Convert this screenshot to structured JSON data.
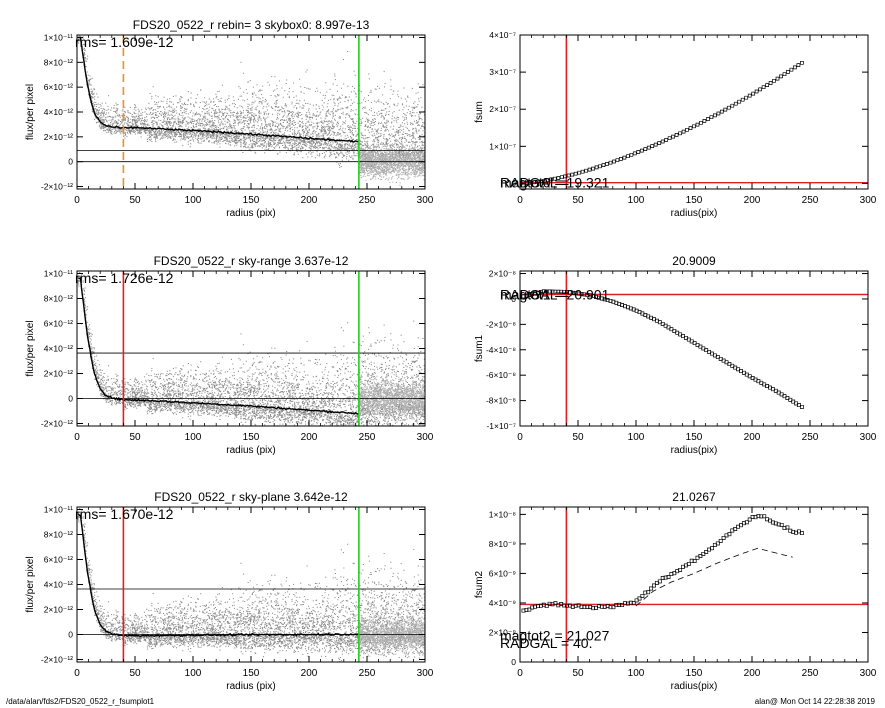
{
  "footer": {
    "path": "/data/alan/fds2/FDS20_0522_r_fsumplot1",
    "stamp": "alan@  Mon Oct 14 22:28:38 2019"
  },
  "colors": {
    "dots": "#8a8a8a",
    "profile": "#000000",
    "red": "#e02020",
    "green": "#22cc22",
    "orange": "#f0901e"
  },
  "chart_data": [
    {
      "id": "p1",
      "type": "scatter",
      "title": "FDS20_0522_r rebin= 3    skybox0:  8.997e-13",
      "xlabel": "radius (pix)",
      "ylabel": "flux/per pixel",
      "xlim": [
        0,
        300
      ],
      "ylim": [
        -2.2e-12,
        1.02e-11
      ],
      "xticks": [
        "0",
        "50",
        "100",
        "150",
        "200",
        "250",
        "300"
      ],
      "yticks": [
        {
          "v": 1e-11,
          "label": "1×10⁻¹¹"
        },
        {
          "v": 8e-12,
          "label": "8×10⁻¹²"
        },
        {
          "v": 6e-12,
          "label": "6×10⁻¹²"
        },
        {
          "v": 4e-12,
          "label": "4×10⁻¹²"
        },
        {
          "v": 2e-12,
          "label": "2×10⁻¹²"
        },
        {
          "v": 0,
          "label": "0"
        },
        {
          "v": -2e-12,
          "label": "-2×10⁻¹²"
        }
      ],
      "annotation": "rms= 1.609e-12",
      "hlines": [
        9e-13,
        0
      ],
      "vline_radgal": 40,
      "vline_radgal_style": "orange-dashed",
      "vline_edge": 243,
      "profile": [
        [
          3,
          1e-11
        ],
        [
          6,
          8e-12
        ],
        [
          9,
          6.2e-12
        ],
        [
          12,
          4.9e-12
        ],
        [
          15,
          3.9e-12
        ],
        [
          20,
          3.2e-12
        ],
        [
          25,
          2.9e-12
        ],
        [
          30,
          2.8e-12
        ],
        [
          40,
          2.7e-12
        ],
        [
          50,
          2.75e-12
        ],
        [
          70,
          2.65e-12
        ],
        [
          100,
          2.5e-12
        ],
        [
          130,
          2.35e-12
        ],
        [
          160,
          2.15e-12
        ],
        [
          190,
          1.95e-12
        ],
        [
          220,
          1.75e-12
        ],
        [
          242,
          1.6e-12
        ]
      ],
      "scatter_spread": [
        1.2e-12,
        1.9e-12,
        2.6e-12,
        3.4e-12
      ]
    },
    {
      "id": "p2",
      "type": "scatter",
      "title": "FDS20_0522_r sky-range  3.637e-12",
      "xlabel": "radius (pix)",
      "ylabel": "flux/per pixel",
      "xlim": [
        0,
        300
      ],
      "ylim": [
        -2.2e-12,
        1.02e-11
      ],
      "xticks": [
        "0",
        "50",
        "100",
        "150",
        "200",
        "250",
        "300"
      ],
      "yticks": [
        {
          "v": 1e-11,
          "label": "1×10⁻¹¹"
        },
        {
          "v": 8e-12,
          "label": "8×10⁻¹²"
        },
        {
          "v": 6e-12,
          "label": "6×10⁻¹²"
        },
        {
          "v": 4e-12,
          "label": "4×10⁻¹²"
        },
        {
          "v": 2e-12,
          "label": "2×10⁻¹²"
        },
        {
          "v": 0,
          "label": "0"
        },
        {
          "v": -2e-12,
          "label": "-2×10⁻¹²"
        }
      ],
      "annotation": "rms= 1.726e-12",
      "hlines": [
        3.637e-12,
        0
      ],
      "vline_radgal": 40,
      "vline_radgal_style": "red",
      "vline_edge": 243,
      "profile": [
        [
          3,
          9.6e-12
        ],
        [
          6,
          7.2e-12
        ],
        [
          9,
          5e-12
        ],
        [
          12,
          3.4e-12
        ],
        [
          15,
          2e-12
        ],
        [
          20,
          8e-13
        ],
        [
          25,
          2.5e-13
        ],
        [
          30,
          5e-14
        ],
        [
          40,
          -1e-13
        ],
        [
          60,
          -1.5e-13
        ],
        [
          90,
          -3e-13
        ],
        [
          120,
          -4.5e-13
        ],
        [
          150,
          -6e-13
        ],
        [
          180,
          -8e-13
        ],
        [
          210,
          -1e-12
        ],
        [
          242,
          -1.2e-12
        ]
      ],
      "scatter_spread": [
        1.2e-12,
        1.9e-12,
        2.6e-12,
        3.4e-12
      ]
    },
    {
      "id": "p3",
      "type": "scatter",
      "title": "FDS20_0522_r sky-plane  3.642e-12",
      "xlabel": "radius (pix)",
      "ylabel": "flux/per pixel",
      "xlim": [
        0,
        300
      ],
      "ylim": [
        -2.2e-12,
        1.02e-11
      ],
      "xticks": [
        "0",
        "50",
        "100",
        "150",
        "200",
        "250",
        "300"
      ],
      "yticks": [
        {
          "v": 1e-11,
          "label": "1×10⁻¹¹"
        },
        {
          "v": 8e-12,
          "label": "8×10⁻¹²"
        },
        {
          "v": 6e-12,
          "label": "6×10⁻¹²"
        },
        {
          "v": 4e-12,
          "label": "4×10⁻¹²"
        },
        {
          "v": 2e-12,
          "label": "2×10⁻¹²"
        },
        {
          "v": 0,
          "label": "0"
        },
        {
          "v": -2e-12,
          "label": "-2×10⁻¹²"
        }
      ],
      "annotation": "rms= 1.670e-12",
      "hlines": [
        3.642e-12,
        0
      ],
      "vline_radgal": 40,
      "vline_radgal_style": "red",
      "vline_edge": 243,
      "profile": [
        [
          3,
          9.6e-12
        ],
        [
          6,
          7.2e-12
        ],
        [
          9,
          5e-12
        ],
        [
          12,
          3.4e-12
        ],
        [
          15,
          2e-12
        ],
        [
          20,
          8e-13
        ],
        [
          25,
          2.5e-13
        ],
        [
          30,
          5e-14
        ],
        [
          40,
          -1e-13
        ],
        [
          70,
          -8e-14
        ],
        [
          100,
          -5e-14
        ],
        [
          150,
          -2e-14
        ],
        [
          200,
          0.0
        ],
        [
          242,
          2e-14
        ]
      ],
      "scatter_spread": [
        1.2e-12,
        1.9e-12,
        2.6e-12,
        3.4e-12
      ]
    },
    {
      "id": "p4",
      "type": "scatter",
      "title": "",
      "xlabel": "radius(pix)",
      "ylabel": "fsum",
      "xlim": [
        0,
        300
      ],
      "ylim": [
        -1.5e-08,
        4e-07
      ],
      "xticks": [
        "0",
        "50",
        "100",
        "150",
        "200",
        "250",
        "300"
      ],
      "yticks": [
        {
          "v": 4e-07,
          "label": "4×10⁻⁷"
        },
        {
          "v": 3e-07,
          "label": "3×10⁻⁷"
        },
        {
          "v": 2e-07,
          "label": "2×10⁻⁷"
        },
        {
          "v": 1e-07,
          "label": "1×10⁻⁷"
        },
        {
          "v": 0,
          "label": "0"
        }
      ],
      "overprint": [
        "RADGAL =",
        "magtot0 =  19.321"
      ],
      "hline_red": 2e-09,
      "vline_red": 40,
      "curve": {
        "kind": "power",
        "x0": 3,
        "x1": 243,
        "a": 3.25e-07,
        "p": 1.55,
        "step": 3
      },
      "dashed": null
    },
    {
      "id": "p5",
      "type": "scatter",
      "title": "20.9009",
      "xlabel": "radius(pix)",
      "ylabel": "fsum1",
      "xlim": [
        0,
        300
      ],
      "ylim": [
        -1e-07,
        2.2e-08
      ],
      "xticks": [
        "0",
        "50",
        "100",
        "150",
        "200",
        "250",
        "300"
      ],
      "yticks": [
        {
          "v": 2e-08,
          "label": "2×10⁻⁸"
        },
        {
          "v": 0,
          "label": "0"
        },
        {
          "v": -2e-08,
          "label": "-2×10⁻⁸"
        },
        {
          "v": -4e-08,
          "label": "-4×10⁻⁸"
        },
        {
          "v": -6e-08,
          "label": "-6×10⁻⁸"
        },
        {
          "v": -8e-08,
          "label": "-8×10⁻⁸"
        },
        {
          "v": -1e-07,
          "label": "-1×10⁻⁷"
        }
      ],
      "overprint": [
        "RADGAL =",
        "magtot1 =  20.901"
      ],
      "hline_red": 3.5e-09,
      "vline_red": 40,
      "curve": {
        "kind": "points",
        "step": 2.5,
        "points": [
          [
            3,
            2e-09
          ],
          [
            20,
            6e-09
          ],
          [
            40,
            5.5e-09
          ],
          [
            60,
            3e-09
          ],
          [
            80,
            -2e-09
          ],
          [
            100,
            -9e-09
          ],
          [
            120,
            -1.8e-08
          ],
          [
            140,
            -2.9e-08
          ],
          [
            160,
            -4e-08
          ],
          [
            180,
            -5.1e-08
          ],
          [
            200,
            -6.2e-08
          ],
          [
            220,
            -7.2e-08
          ],
          [
            243,
            -8.5e-08
          ]
        ]
      },
      "dashed": null
    },
    {
      "id": "p6",
      "type": "scatter",
      "title": "21.0267",
      "xlabel": "radius(pix)",
      "ylabel": "fsum2",
      "xlim": [
        0,
        300
      ],
      "ylim": [
        0,
        1.05e-08
      ],
      "xticks": [
        "0",
        "50",
        "100",
        "150",
        "200",
        "250",
        "300"
      ],
      "yticks": [
        {
          "v": 1e-08,
          "label": "1×10⁻⁸"
        },
        {
          "v": 8e-09,
          "label": "8×10⁻⁹"
        },
        {
          "v": 6e-09,
          "label": "6×10⁻⁹"
        },
        {
          "v": 4e-09,
          "label": "4×10⁻⁹"
        },
        {
          "v": 2e-09,
          "label": "2×10⁻⁹"
        },
        {
          "v": 0,
          "label": "0"
        }
      ],
      "overprint": [
        "magtot2 =  21.027",
        "RADGAL =    40."
      ],
      "hline_red": 3.9e-09,
      "vline_red": 40,
      "curve": {
        "kind": "points",
        "step": 2.5,
        "points": [
          [
            3,
            3.5e-09
          ],
          [
            15,
            3.7e-09
          ],
          [
            30,
            3.95e-09
          ],
          [
            45,
            3.8e-09
          ],
          [
            60,
            3.7e-09
          ],
          [
            80,
            3.75e-09
          ],
          [
            100,
            4.1e-09
          ],
          [
            110,
            4.8e-09
          ],
          [
            120,
            5.5e-09
          ],
          [
            130,
            5.9e-09
          ],
          [
            140,
            6.4e-09
          ],
          [
            150,
            6.9e-09
          ],
          [
            160,
            7.4e-09
          ],
          [
            170,
            8e-09
          ],
          [
            180,
            8.7e-09
          ],
          [
            190,
            9.3e-09
          ],
          [
            200,
            9.8e-09
          ],
          [
            210,
            9.9e-09
          ],
          [
            220,
            9.4e-09
          ],
          [
            230,
            9e-09
          ],
          [
            245,
            8.7e-09
          ]
        ]
      },
      "dashed": [
        [
          100,
          3.8e-09
        ],
        [
          115,
          4.8e-09
        ],
        [
          130,
          5.4e-09
        ],
        [
          150,
          6e-09
        ],
        [
          170,
          6.7e-09
        ],
        [
          190,
          7.3e-09
        ],
        [
          205,
          7.7e-09
        ],
        [
          220,
          7.4e-09
        ],
        [
          235,
          7.1e-09
        ]
      ]
    }
  ]
}
